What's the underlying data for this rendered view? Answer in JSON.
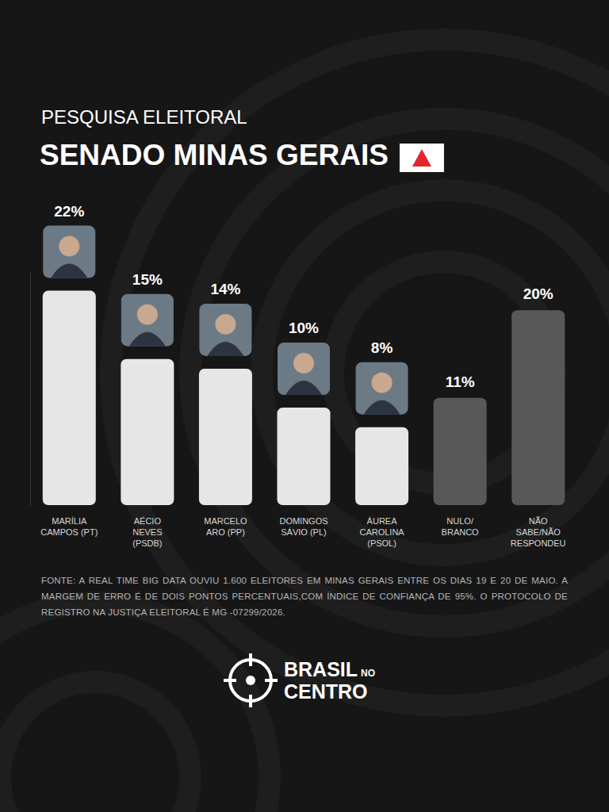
{
  "chart_data": {
    "type": "bar",
    "title": "PESQUISA ELEITORAL",
    "subtitle": "SENADO MINAS GERAIS",
    "categories": [
      "MARÍLIA CAMPOS (PT)",
      "AÉCIO NEVES (PSDB)",
      "MARCELO ARO (PP)",
      "DOMINGOS SÁVIO (PL)",
      "ÁUREA CAROLINA (PSOL)",
      "NULO/ BRANCO",
      "NÃO SABE/NÃO RESPONDEU"
    ],
    "values": [
      22,
      15,
      14,
      10,
      8,
      11,
      20
    ],
    "value_labels": [
      "22%",
      "15%",
      "14%",
      "10%",
      "8%",
      "11%",
      "20%"
    ],
    "colors": [
      "#e6e6e6",
      "#e6e6e6",
      "#e6e6e6",
      "#e6e6e6",
      "#e6e6e6",
      "#585858",
      "#585858"
    ],
    "ylim": [
      0,
      24
    ],
    "data_labels": true,
    "tick_labels": "x",
    "grid": false,
    "source": "FONTE: A REAL TIME BIG DATA OUVIU 1.600 ELEITORES EM MINAS GERAIS ENTRE OS DIAS 19 E 20 DE MAIO. A MARGEM DE ERRO É DE DOIS PONTOS PERCENTUAIS,COM ÍNDICE DE CONFIANÇA DE 95%. O PROTOCOLO DE REGISTRO NA JUSTIÇA ELEITORAL É MG -07299/2026.",
    "logo": {
      "first": "BRASIL",
      "small": "NO",
      "second": "CENTRO"
    }
  }
}
